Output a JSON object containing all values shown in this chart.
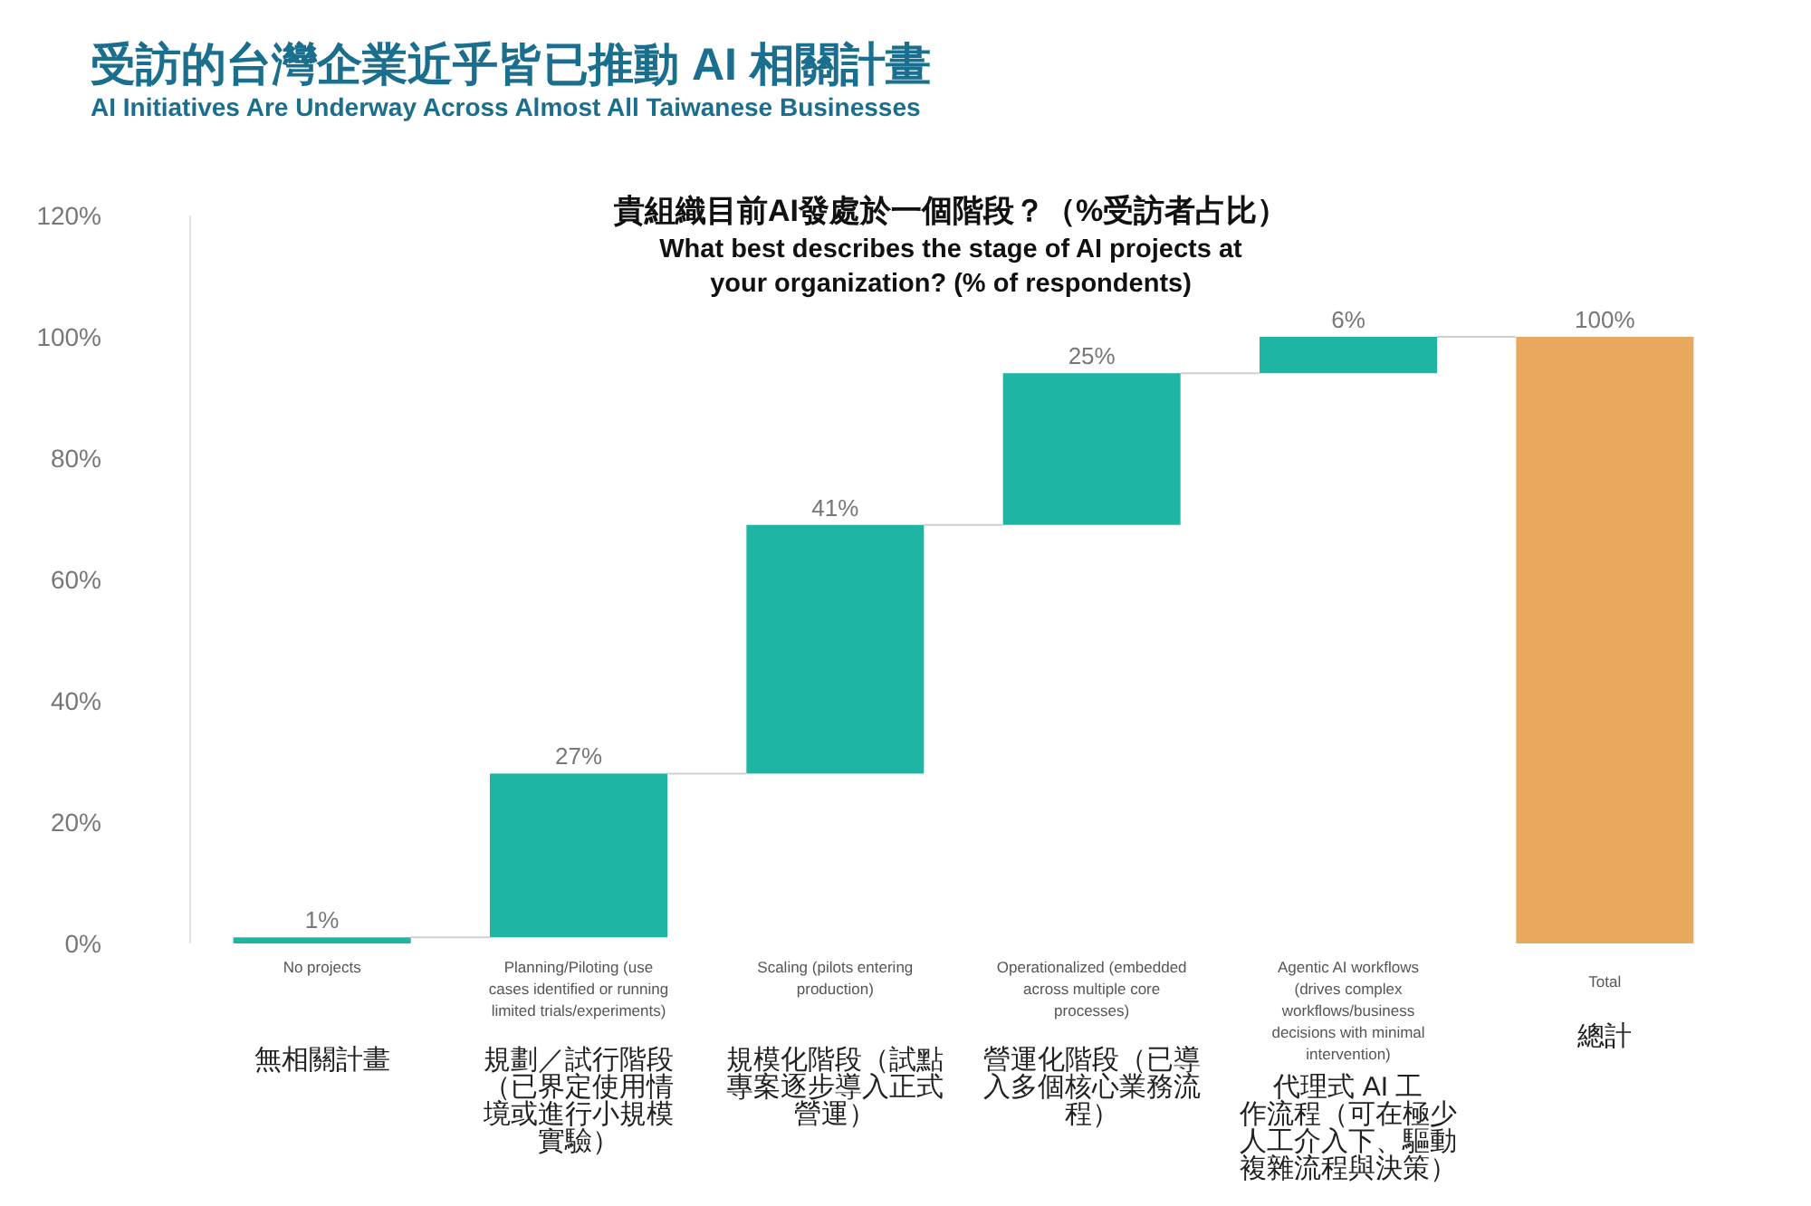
{
  "chart_data": {
    "type": "bar",
    "title": "受訪的台灣企業近乎皆已推動 AI 相關計畫",
    "subtitle": "AI Initiatives Are Underway Across Almost All Taiwanese Businesses",
    "annotations": [
      "貴組織目前AI發處於一個階段？（%受訪者占比）",
      "What best describes the stage of AI projects at your organization? (% of respondents)"
    ],
    "categories": [
      "No projects\n無相關計畫",
      "Planning/Piloting (use cases identified or running limited trials/experiments)\n規劃／試行階段（已界定使用情境或進行小規模實驗）",
      "Scaling (pilots entering production)\n規模化階段（試點專案逐步導入正式營運）",
      "Operationalized (embedded across multiple core processes)\n營運化階段（已導入多個核心業務流程）",
      "Agentic AI workflows (drives complex workflows/business decisions with minimal intervention)\n代理式 AI 工作流程（可在極少人工介入下、驅動複雜流程與決策）",
      "Total\n總計"
    ],
    "values": [
      1,
      27,
      41,
      25,
      6,
      100
    ],
    "base": [
      0,
      1,
      28,
      69,
      94,
      0
    ],
    "colors": [
      "#1fb5a3",
      "#1fb5a3",
      "#1fb5a3",
      "#1fb5a3",
      "#1fb5a3",
      "#e8a95f"
    ],
    "value_labels": [
      "1%",
      "27%",
      "41%",
      "25%",
      "6%",
      "100%"
    ],
    "ylim": [
      0,
      120
    ],
    "yticks": [
      {
        "value": 0,
        "label": "0%"
      },
      {
        "value": 20,
        "label": "20%"
      },
      {
        "value": 40,
        "label": "40%"
      },
      {
        "value": 60,
        "label": "60%"
      },
      {
        "value": 80,
        "label": "80%"
      },
      {
        "value": 100,
        "label": "100%"
      },
      {
        "value": 120,
        "label": "120%"
      }
    ],
    "grid": false
  }
}
